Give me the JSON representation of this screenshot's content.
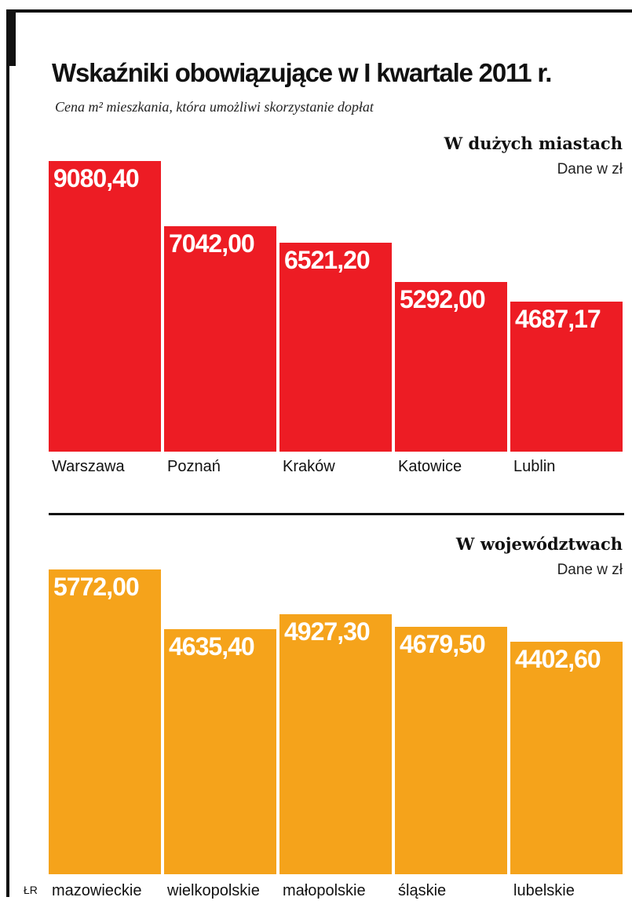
{
  "title": "Wskaźniki obowiązujące w I kwartale 2011 r.",
  "subtitle": "Cena m² mieszkania, która umożliwi skorzystanie dopłat",
  "credit": "ŁR",
  "chart_data": [
    {
      "type": "bar",
      "title": "W dużych miastach",
      "unit": "Dane w zł",
      "color": "#ED1C24",
      "categories": [
        "Warszawa",
        "Poznań",
        "Kraków",
        "Katowice",
        "Lublin"
      ],
      "values": [
        9080.4,
        7042.0,
        6521.2,
        5292.0,
        4687.17
      ],
      "labels": [
        "9080,40",
        "7042,00",
        "6521,20",
        "5292,00",
        "4687,17"
      ]
    },
    {
      "type": "bar",
      "title": "W województwach",
      "unit": "Dane w zł",
      "color": "#F5A31B",
      "categories": [
        "mazowieckie",
        "wielkopolskie",
        "małopolskie",
        "śląskie",
        "lubelskie"
      ],
      "values": [
        5772.0,
        4635.4,
        4927.3,
        4679.5,
        4402.6
      ],
      "labels": [
        "5772,00",
        "4635,40",
        "4927,30",
        "4679,50",
        "4402,60"
      ]
    }
  ]
}
